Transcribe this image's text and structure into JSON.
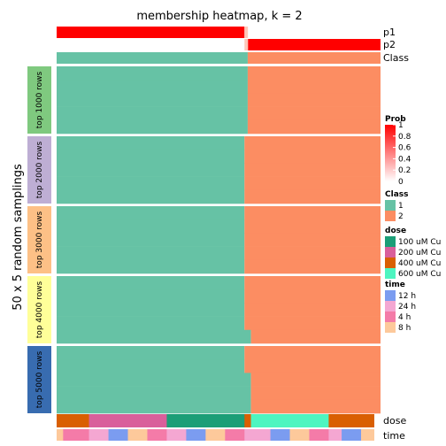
{
  "chart_data": {
    "type": "heatmap",
    "title": "membership heatmap, k = 2",
    "ylabel": "50 x 5 random samplings",
    "top_annotations": {
      "p1": {
        "label": "p1",
        "threshold_fraction": 0.58,
        "values": [
          1,
          0
        ]
      },
      "p2": {
        "label": "p2",
        "threshold_fraction": 0.58,
        "values": [
          0,
          1
        ]
      },
      "class": {
        "label": "Class",
        "values": [
          1,
          2
        ]
      }
    },
    "row_groups": [
      {
        "label": "top 1000 rows",
        "color": "#7FC97F",
        "split_fractions": [
          0.59,
          0.59,
          0.59,
          0.59,
          0.59
        ]
      },
      {
        "label": "top 2000 rows",
        "color": "#BEAED4",
        "split_fractions": [
          0.58,
          0.58,
          0.58,
          0.58,
          0.58
        ]
      },
      {
        "label": "top 3000 rows",
        "color": "#FDC086",
        "split_fractions": [
          0.58,
          0.58,
          0.58,
          0.58,
          0.58
        ]
      },
      {
        "label": "top 4000 rows",
        "color": "#FFFF99",
        "split_fractions": [
          0.58,
          0.58,
          0.58,
          0.58,
          0.6
        ]
      },
      {
        "label": "top 5000 rows",
        "color": "#386CB0",
        "split_fractions": [
          0.58,
          0.58,
          0.6,
          0.6,
          0.6
        ]
      }
    ],
    "bottom_annotations": {
      "dose": {
        "label": "dose",
        "segments": [
          [
            "400 uM Cu",
            0.1
          ],
          [
            "200 uM Cu",
            0.24
          ],
          [
            "100 uM Cu",
            0.24
          ],
          [
            "400 uM Cu",
            0.02
          ],
          [
            "600 uM Cu",
            0.24
          ],
          [
            "400 uM Cu",
            0.14
          ]
        ]
      },
      "time": {
        "label": "time",
        "segments": [
          [
            "8 h",
            0.02
          ],
          [
            "4 h",
            0.08
          ],
          [
            "24 h",
            0.06
          ],
          [
            "12 h",
            0.06
          ],
          [
            "8 h",
            0.06
          ],
          [
            "4 h",
            0.06
          ],
          [
            "24 h",
            0.06
          ],
          [
            "12 h",
            0.06
          ],
          [
            "8 h",
            0.06
          ],
          [
            "4 h",
            0.06
          ],
          [
            "24 h",
            0.08
          ],
          [
            "12 h",
            0.06
          ],
          [
            "8 h",
            0.06
          ],
          [
            "4 h",
            0.06
          ],
          [
            "24 h",
            0.04
          ],
          [
            "12 h",
            0.06
          ],
          [
            "8 h",
            0.04
          ]
        ]
      }
    },
    "legends": {
      "prob": {
        "title": "Prob",
        "ticks": [
          "1",
          "0.8",
          "0.6",
          "0.4",
          "0.2",
          "0"
        ]
      },
      "class": {
        "title": "Class",
        "items": [
          [
            "1",
            "#66C2A5"
          ],
          [
            "2",
            "#FC8D62"
          ]
        ]
      },
      "dose": {
        "title": "dose",
        "items": [
          [
            "100 uM Cu",
            "#1B9E77"
          ],
          [
            "200 uM Cu",
            "#D95F9B"
          ],
          [
            "400 uM Cu",
            "#D95F02"
          ],
          [
            "600 uM Cu",
            "#4EF5C0"
          ]
        ]
      },
      "time": {
        "title": "time",
        "items": [
          [
            "12 h",
            "#7B9CF0"
          ],
          [
            "24 h",
            "#F4A7D2"
          ],
          [
            "4 h",
            "#F47BA8"
          ],
          [
            "8 h",
            "#FDC99B"
          ]
        ]
      }
    },
    "colors": {
      "class1": "#66C2A5",
      "class2": "#FC8D62",
      "prob_high": "#FF0000",
      "prob_low": "#FFFFFF"
    }
  }
}
